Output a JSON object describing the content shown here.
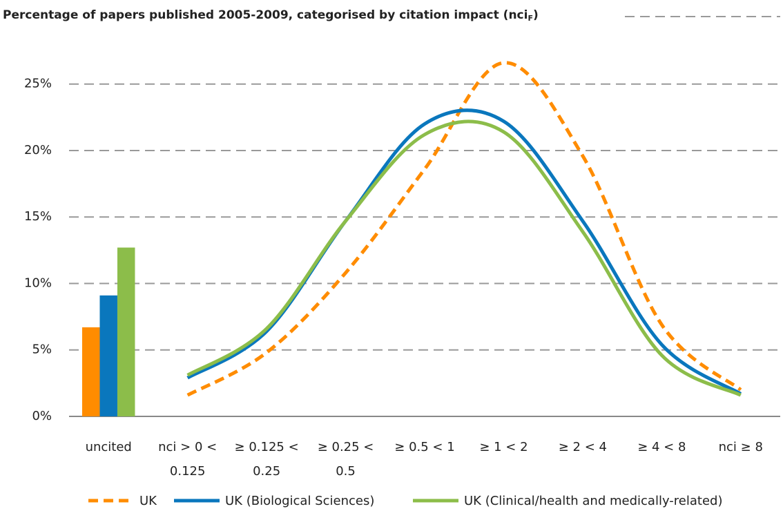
{
  "chart_data": {
    "type": "combo",
    "title": "Percentage of papers published 2005-2009, categorised by citation impact (nci",
    "title_subscript": "F",
    "title_end": ")",
    "categories": [
      "uncited",
      "nci > 0 <\n0.125",
      "≥ 0.125 <\n0.25",
      "≥ 0.25 <\n0.5",
      "≥ 0.5 < 1",
      "≥ 1 < 2",
      "≥ 2 < 4",
      "≥ 4 < 8",
      "nci ≥ 8"
    ],
    "series": [
      {
        "name": "UK",
        "color": "#ff8c00",
        "dashed": true,
        "values": [
          6.7,
          1.6,
          4.8,
          10.8,
          18.6,
          26.6,
          19.6,
          6.9,
          2.0
        ]
      },
      {
        "name": "UK (Biological Sciences)",
        "color": "#0a77bd",
        "dashed": false,
        "values": [
          9.1,
          2.9,
          6.4,
          14.7,
          22.0,
          22.2,
          14.7,
          5.4,
          1.7
        ]
      },
      {
        "name": "UK (Clinical/health and medically-related)",
        "color": "#8cbd4a",
        "dashed": false,
        "values": [
          12.7,
          3.1,
          6.6,
          14.7,
          21.2,
          21.4,
          13.9,
          4.6,
          1.6
        ]
      }
    ],
    "ylim": [
      0,
      27.5
    ],
    "yticks": [
      {
        "value": 0,
        "label": "0%"
      },
      {
        "value": 5,
        "label": "5%"
      },
      {
        "value": 10,
        "label": "10%"
      },
      {
        "value": 15,
        "label": "15%"
      },
      {
        "value": 20,
        "label": "20%"
      },
      {
        "value": 25,
        "label": "25%"
      }
    ],
    "grid": true,
    "legend": "bottom"
  }
}
